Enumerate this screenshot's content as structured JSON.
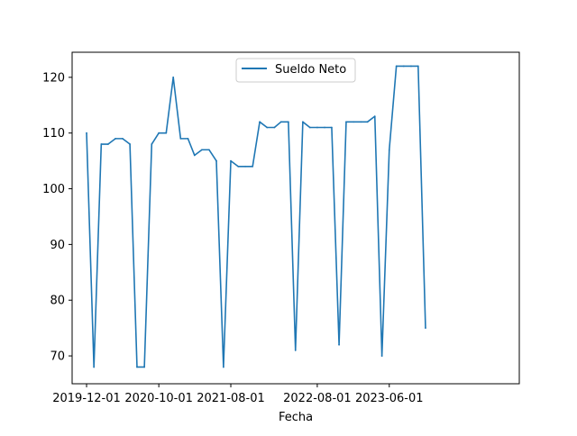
{
  "chart_data": {
    "type": "line",
    "title": "",
    "xlabel": "Fecha",
    "ylabel": "",
    "x_type": "date",
    "x_start": "2019-12-01",
    "x_step": "month",
    "xlim": [
      "2019-10-01",
      "2024-12-01"
    ],
    "ylim": [
      65.0,
      124.5
    ],
    "x_ticks": [
      "2019-12-01",
      "2020-10-01",
      "2021-08-01",
      "2022-08-01",
      "2023-06-01"
    ],
    "y_ticks": [
      70,
      80,
      90,
      100,
      110,
      120
    ],
    "x_tick_labels": [
      "2019-12-01",
      "2020-10-01",
      "2021-08-01",
      "2022-08-01",
      "2023-06-01"
    ],
    "y_tick_labels": [
      "70",
      "80",
      "90",
      "100",
      "110",
      "120"
    ],
    "grid": false,
    "legend_position": "upper center",
    "series": [
      {
        "name": "Sueldo Neto",
        "color": "#1f77b4",
        "values": [
          110,
          68,
          108,
          108,
          109,
          109,
          108,
          68,
          68,
          108,
          110,
          110,
          120,
          109,
          109,
          106,
          107,
          107,
          105,
          68,
          105,
          104,
          104,
          104,
          112,
          111,
          111,
          112,
          112,
          71,
          112,
          111,
          111,
          111,
          111,
          72,
          112,
          112,
          112,
          112,
          113,
          70,
          107,
          122,
          122,
          122,
          122,
          75
        ]
      }
    ]
  }
}
